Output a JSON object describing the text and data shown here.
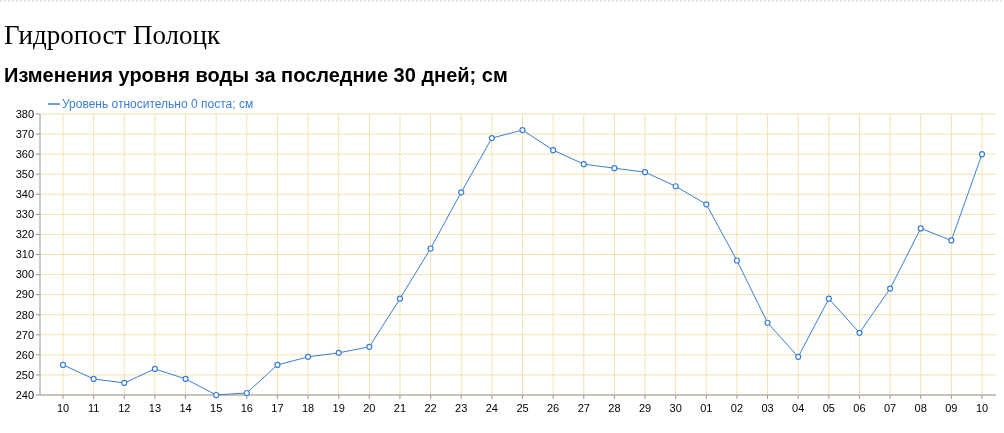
{
  "chart_data": {
    "type": "line",
    "title": "Гидропост Полоцк",
    "subtitle": "Изменения уровня воды за последние 30 дней; см",
    "categories": [
      "10",
      "11",
      "12",
      "13",
      "14",
      "15",
      "16",
      "17",
      "18",
      "19",
      "20",
      "21",
      "22",
      "23",
      "24",
      "25",
      "26",
      "27",
      "28",
      "29",
      "30",
      "01",
      "02",
      "03",
      "04",
      "05",
      "06",
      "07",
      "08",
      "09",
      "10"
    ],
    "series": [
      {
        "name": "Уровень относительно 0 поста; см",
        "color": "#3a7fd5",
        "values": [
          255,
          248,
          246,
          253,
          248,
          240,
          241,
          255,
          259,
          261,
          264,
          288,
          313,
          341,
          368,
          372,
          362,
          355,
          353,
          351,
          344,
          335,
          307,
          276,
          259,
          288,
          271,
          293,
          323,
          317,
          360
        ]
      }
    ],
    "ylim": [
      240,
      380
    ],
    "yticks": [
      240,
      250,
      260,
      270,
      280,
      290,
      300,
      310,
      320,
      330,
      340,
      350,
      360,
      370,
      380
    ],
    "grid": true,
    "legend": "top left",
    "marker": "circle",
    "line_style": "solid"
  }
}
